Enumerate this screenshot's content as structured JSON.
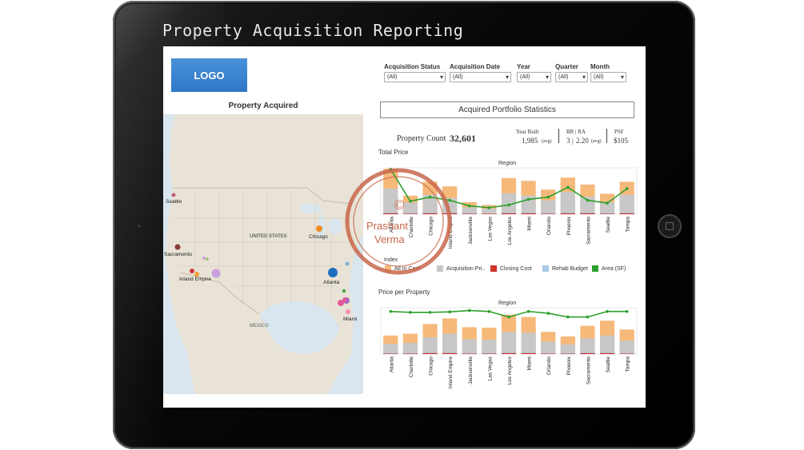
{
  "app": {
    "title": "Property Acquisition Reporting",
    "logo": "LOGO"
  },
  "filters": [
    {
      "label": "Acquisition Status",
      "value": "(All)"
    },
    {
      "label": "Acquisition Date",
      "value": "(All)"
    },
    {
      "label": "Year",
      "value": "(All)"
    },
    {
      "label": "Quarter",
      "value": "(All)"
    },
    {
      "label": "Month",
      "value": "(All)"
    }
  ],
  "map": {
    "title": "Property Acquired",
    "country_label": "UNITED STATES",
    "mexico_label": "MEXICO",
    "cities": [
      {
        "name": "Seattle",
        "color": "#c65a7a"
      },
      {
        "name": "Sacramento",
        "color": "#8b3a3a"
      },
      {
        "name": "Inland Empire",
        "color": "#d13c3c"
      },
      {
        "name": "Chicago",
        "color": "#f08a24"
      },
      {
        "name": "Atlanta",
        "color": "#1f6fc0"
      },
      {
        "name": "Miami",
        "color": "#e05a9a"
      }
    ],
    "extra_dot_colors": [
      "#c9a0dc",
      "#f0a030",
      "#8fbf60",
      "#9c6ac0",
      "#f48fb1",
      "#2ca02c",
      "#7fb3d5"
    ]
  },
  "stats": {
    "header": "Acquired Portfolio Statistics",
    "property_count_label": "Property Count",
    "property_count": "32,601",
    "year_built_label": "Year Built",
    "year_built_value": "1,985",
    "year_built_unit": "(avg)",
    "br_ra_label": "BR | RA",
    "br_value": "3",
    "ra_value": "2.20",
    "br_ra_unit": "(avg)",
    "psf_label": "PSF",
    "psf_value": "$105"
  },
  "watermark": {
    "symbol": "©",
    "line1": "Prashant",
    "line2": "Verma"
  },
  "legend": {
    "title": "Index",
    "items": [
      {
        "label": "All In Cost",
        "color": "#f6b97a"
      },
      {
        "label": "Acquisition Pri..",
        "color": "#c8c8c8"
      },
      {
        "label": "Closing Cost",
        "color": "#d0342c"
      },
      {
        "label": "Rehab Budget",
        "color": "#a9c8e6"
      },
      {
        "label": "Area (SF)",
        "color": "#2ca02c"
      }
    ]
  },
  "chart_data": [
    {
      "type": "bar",
      "title": "Total Price",
      "xlabel": "Region",
      "ylabel": "",
      "categories": [
        "Atlanta",
        "Charlotte",
        "Chicago",
        "Inland Empire",
        "Jacksonville",
        "Las Vegas",
        "Los Angeles",
        "Miami",
        "Orlando",
        "Phoenix",
        "Sacramento",
        "Seattle",
        "Tampa"
      ],
      "ylim": [
        0,
        100
      ],
      "series": [
        {
          "name": "All In Cost",
          "values": [
            98,
            40,
            70,
            60,
            26,
            20,
            78,
            72,
            53,
            79,
            64,
            44,
            70
          ]
        },
        {
          "name": "Acquisition Pri..",
          "values": [
            55,
            25,
            42,
            35,
            15,
            12,
            45,
            40,
            30,
            48,
            38,
            26,
            42
          ]
        },
        {
          "name": "Closing Cost",
          "values": [
            2,
            1,
            2,
            2,
            1,
            1,
            2,
            2,
            1,
            2,
            2,
            1,
            2
          ]
        },
        {
          "name": "Rehab Budget",
          "values": [
            3,
            2,
            3,
            3,
            2,
            1,
            3,
            3,
            2,
            3,
            3,
            2,
            3
          ]
        },
        {
          "name": "Area (SF)",
          "values": [
            97,
            28,
            37,
            30,
            18,
            14,
            20,
            32,
            37,
            58,
            30,
            24,
            55
          ]
        }
      ]
    },
    {
      "type": "bar",
      "title": "Price per Property",
      "xlabel": "Region",
      "ylabel": "",
      "categories": [
        "Atlanta",
        "Charlotte",
        "Chicago",
        "Inland Empire",
        "Jacksonville",
        "Las Vegas",
        "Los Angeles",
        "Miami",
        "Orlando",
        "Phoenix",
        "Sacramento",
        "Seattle",
        "Tampa"
      ],
      "ylim": [
        0,
        100
      ],
      "series": [
        {
          "name": "All In Cost",
          "values": [
            40,
            44,
            65,
            77,
            58,
            57,
            85,
            80,
            48,
            38,
            61,
            72,
            53
          ]
        },
        {
          "name": "Acquisition Pri..",
          "values": [
            22,
            24,
            36,
            44,
            32,
            31,
            48,
            46,
            27,
            21,
            34,
            40,
            29
          ]
        },
        {
          "name": "Closing Cost",
          "values": [
            1,
            1,
            2,
            2,
            1,
            1,
            2,
            2,
            1,
            1,
            2,
            2,
            1
          ]
        },
        {
          "name": "Rehab Budget",
          "values": [
            2,
            2,
            3,
            3,
            2,
            2,
            3,
            3,
            2,
            2,
            3,
            3,
            2
          ]
        },
        {
          "name": "Area (SF)",
          "values": [
            92,
            90,
            90,
            91,
            94,
            92,
            80,
            92,
            88,
            80,
            80,
            92,
            92
          ]
        }
      ]
    }
  ]
}
